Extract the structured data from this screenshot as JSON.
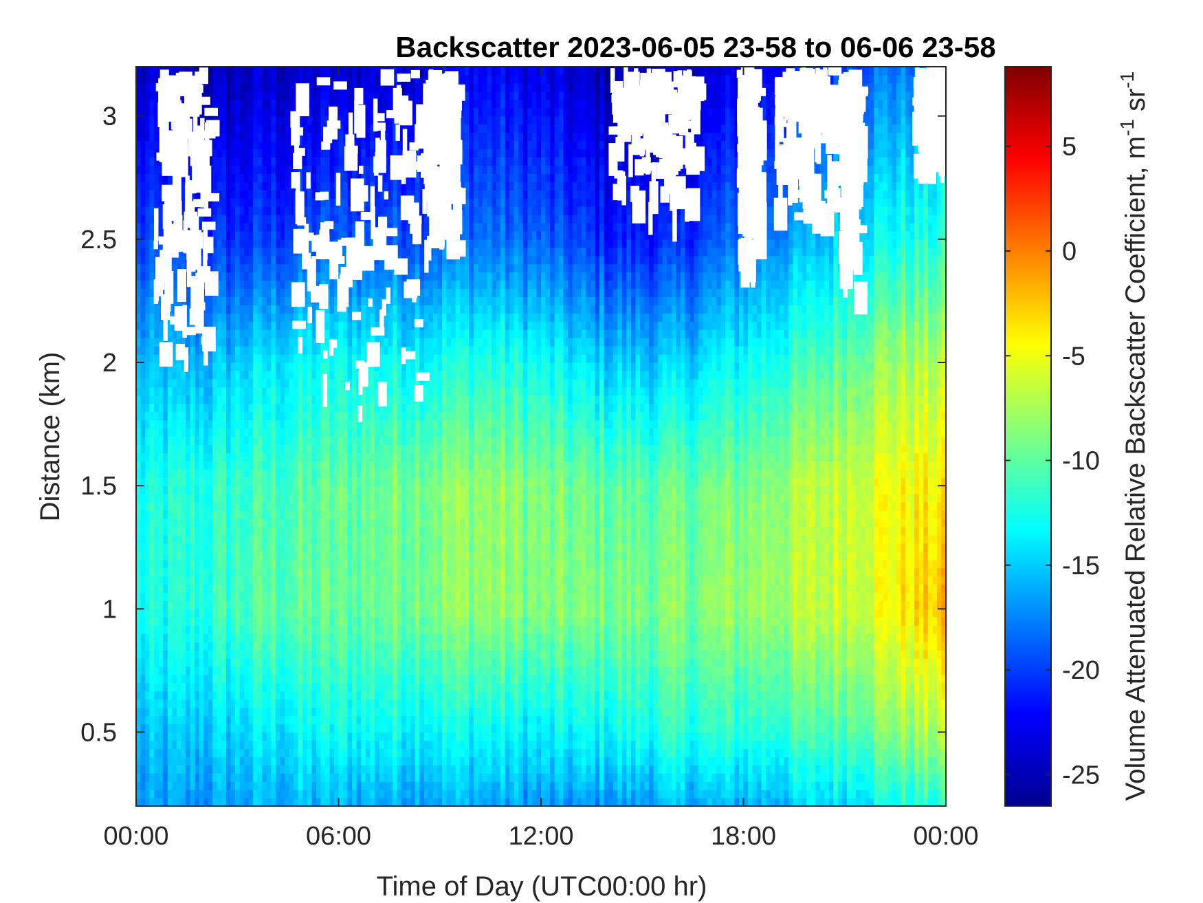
{
  "chart_data": {
    "type": "heatmap",
    "title": "Backscatter 2023-06-05 23-58 to 06-06 23-58",
    "xlabel": "Time of Day (UTC00:00 hr)",
    "ylabel": "Distance (km)",
    "colorbar_label_main": "Volume Attenuated Relative Backscatter Coefficient, m",
    "colorbar_label_exp1": "-1",
    "colorbar_label_mid": " sr",
    "colorbar_label_exp2": "-1",
    "xlim_hours": [
      0,
      24
    ],
    "ylim": [
      0.2,
      3.2
    ],
    "clim": [
      -26.5,
      8.8
    ],
    "colormap": "jet",
    "x_ticks": [
      {
        "hour": 0,
        "label": "00:00"
      },
      {
        "hour": 6,
        "label": "06:00"
      },
      {
        "hour": 12,
        "label": "12:00"
      },
      {
        "hour": 18,
        "label": "18:00"
      },
      {
        "hour": 24,
        "label": "00:00"
      }
    ],
    "y_ticks": [
      {
        "value": 0.5,
        "label": "0.5"
      },
      {
        "value": 1,
        "label": "1"
      },
      {
        "value": 1.5,
        "label": "1.5"
      },
      {
        "value": 2,
        "label": "2"
      },
      {
        "value": 2.5,
        "label": "2.5"
      },
      {
        "value": 3,
        "label": "3"
      }
    ],
    "colorbar_ticks": [
      {
        "value": 5,
        "label": "5"
      },
      {
        "value": 0,
        "label": "0"
      },
      {
        "value": -5,
        "label": "-5"
      },
      {
        "value": -10,
        "label": "-10"
      },
      {
        "value": -15,
        "label": "-15"
      },
      {
        "value": -20,
        "label": "-20"
      },
      {
        "value": -25,
        "label": "-25"
      }
    ],
    "field_description": {
      "hours": [
        0,
        2,
        4,
        6,
        8,
        10,
        12,
        14,
        16,
        18,
        20,
        22,
        24
      ],
      "distance_km": [
        0.2,
        0.5,
        1.0,
        1.5,
        2.0,
        2.5,
        3.2
      ],
      "values": [
        [
          -17,
          -16,
          -13,
          -13,
          -16,
          -20,
          -24
        ],
        [
          -17,
          -15,
          -12,
          -12,
          -16,
          -21,
          -25
        ],
        [
          -16,
          -14,
          -10,
          -11,
          -14,
          -20,
          -24
        ],
        [
          -16,
          -13,
          -10,
          -10,
          -13,
          -19,
          -24
        ],
        [
          -16,
          -13,
          -9,
          -9,
          -13,
          -19,
          -23
        ],
        [
          -16,
          -13,
          -8,
          -8,
          -12,
          -18,
          -22
        ],
        [
          -17,
          -14,
          -9,
          -9,
          -13,
          -19,
          -23
        ],
        [
          -17,
          -13,
          -9,
          -10,
          -15,
          -21,
          -25
        ],
        [
          -16,
          -12,
          -9,
          -10,
          -15,
          -21,
          -25
        ],
        [
          -16,
          -12,
          -8,
          -9,
          -13,
          -18,
          -23
        ],
        [
          -15,
          -11,
          -7,
          -7,
          -11,
          -16,
          -21
        ],
        [
          -13,
          -9,
          -5,
          -5,
          -8,
          -13,
          -18
        ],
        [
          -12,
          -7,
          -2,
          -4,
          -7,
          -12,
          -17
        ]
      ]
    }
  }
}
